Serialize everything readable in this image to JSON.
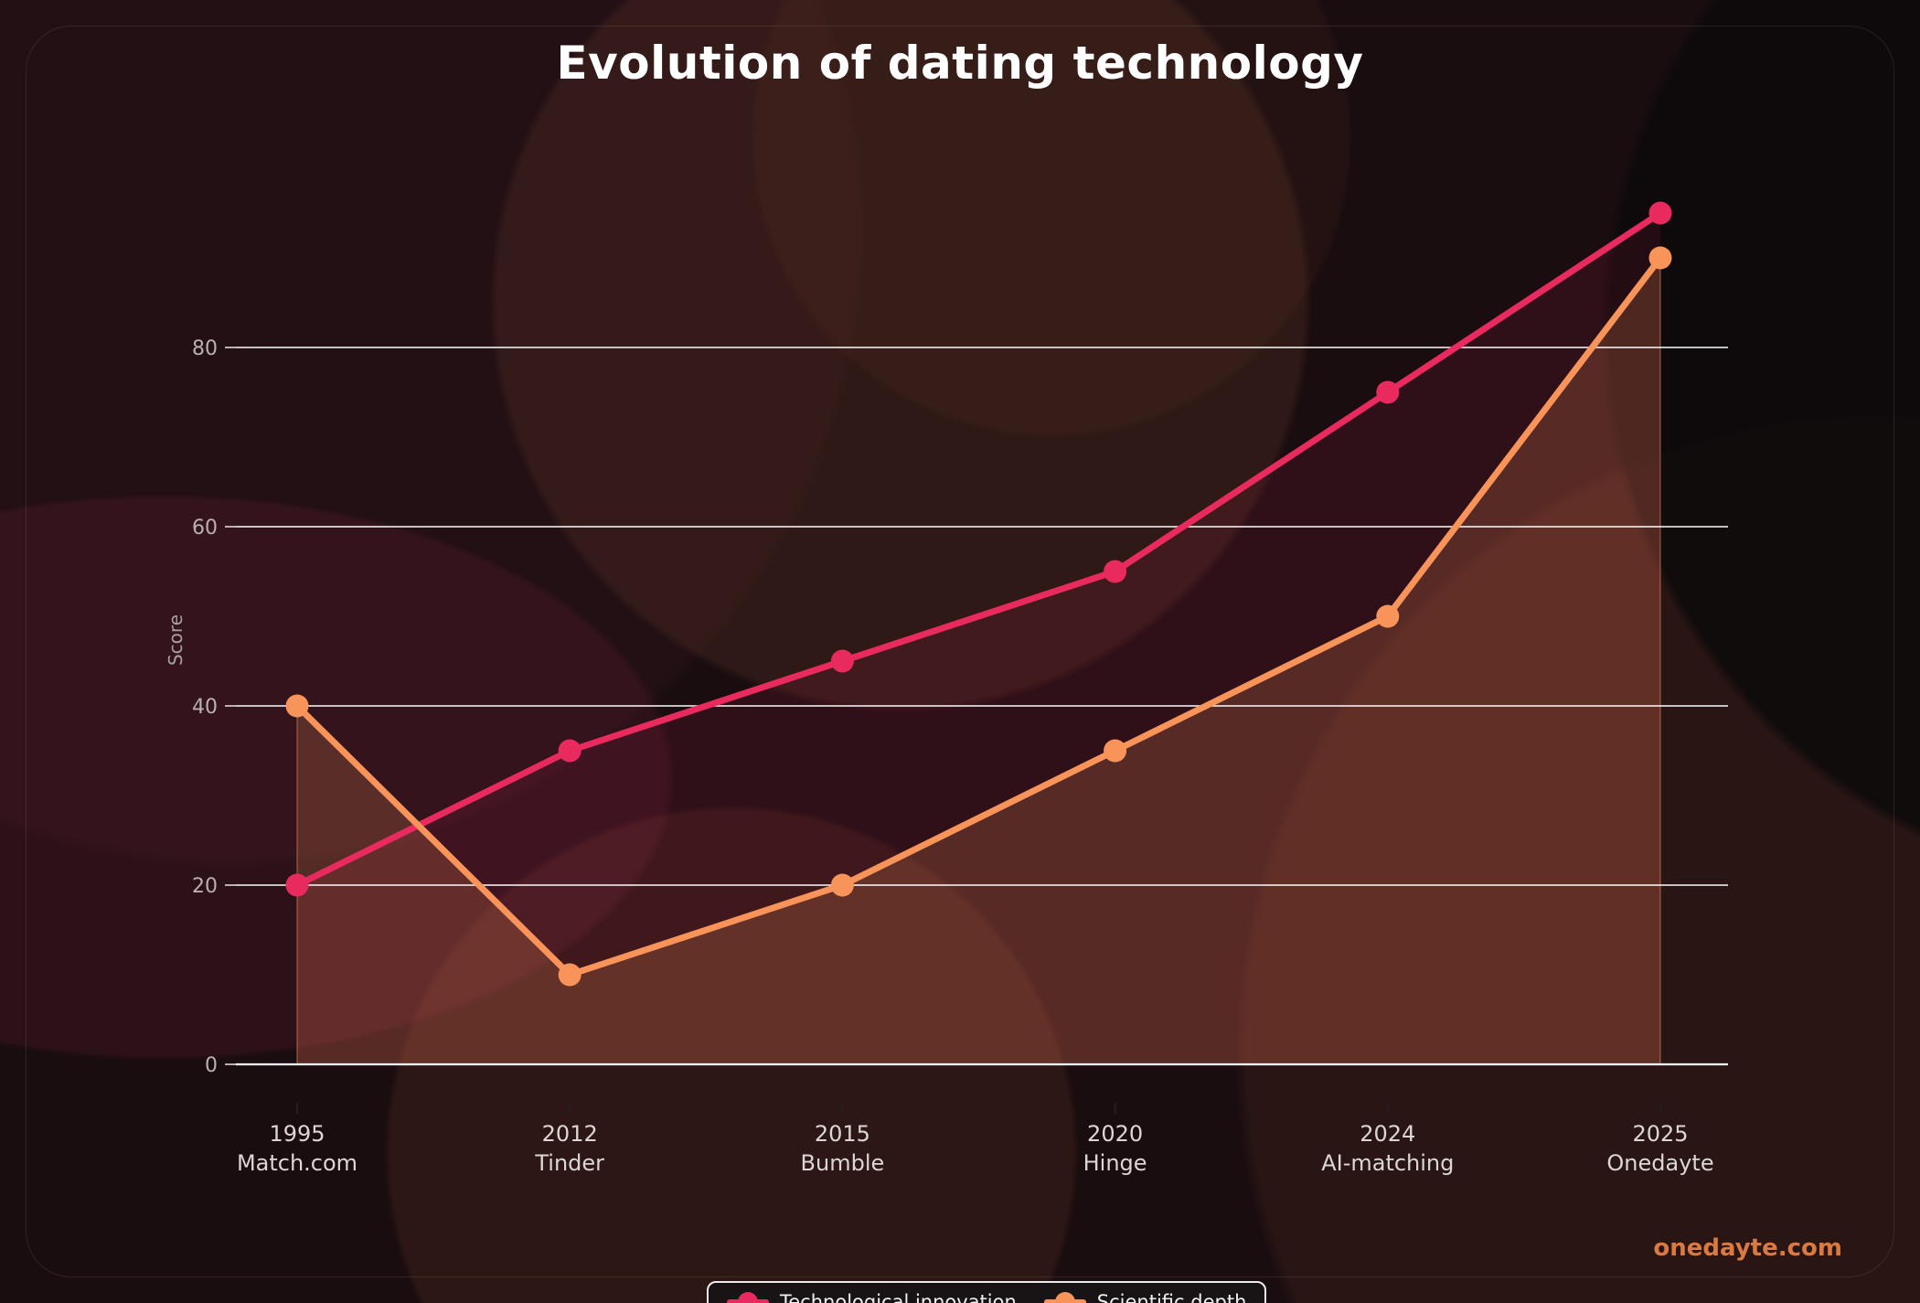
{
  "title": "Evolution of dating technology",
  "watermark": {
    "text": "onedayte.com",
    "color": "#d97a42"
  },
  "chart_data": {
    "type": "line",
    "title": "Evolution of dating technology",
    "xlabel": "",
    "ylabel": "Score",
    "categories": [
      "1995",
      "2012",
      "2015",
      "2020",
      "2024",
      "2025"
    ],
    "category_sublabels": [
      "Match.com",
      "Tinder",
      "Bumble",
      "Hinge",
      "AI-matching",
      "Onedayte"
    ],
    "yticks": [
      0,
      20,
      40,
      60,
      80
    ],
    "ylim": [
      0,
      100
    ],
    "grid": true,
    "legend_position": "bottom-center",
    "series": [
      {
        "name": "Technological innovation",
        "color": "#e92a5f",
        "fill_opacity": 0.1,
        "marker": "circle",
        "values": [
          20,
          35,
          45,
          55,
          75,
          95
        ]
      },
      {
        "name": "Scientific depth",
        "color": "#f8945a",
        "fill_opacity": 0.2,
        "marker": "circle",
        "values": [
          40,
          10,
          20,
          35,
          50,
          90
        ]
      }
    ]
  },
  "colors": {
    "grid_line": "#ffffff",
    "axis_line": "#ffffff",
    "y_tick_label": "#b9b1b1",
    "x_tick_label": "#dcd7d5",
    "x_tick_mark": "#241e1e",
    "score_label": "#a8a0a0",
    "title": "#ffffff",
    "legend_text": "#f1efef",
    "legend_border": "#eceaea",
    "legend_background": "#181415"
  }
}
